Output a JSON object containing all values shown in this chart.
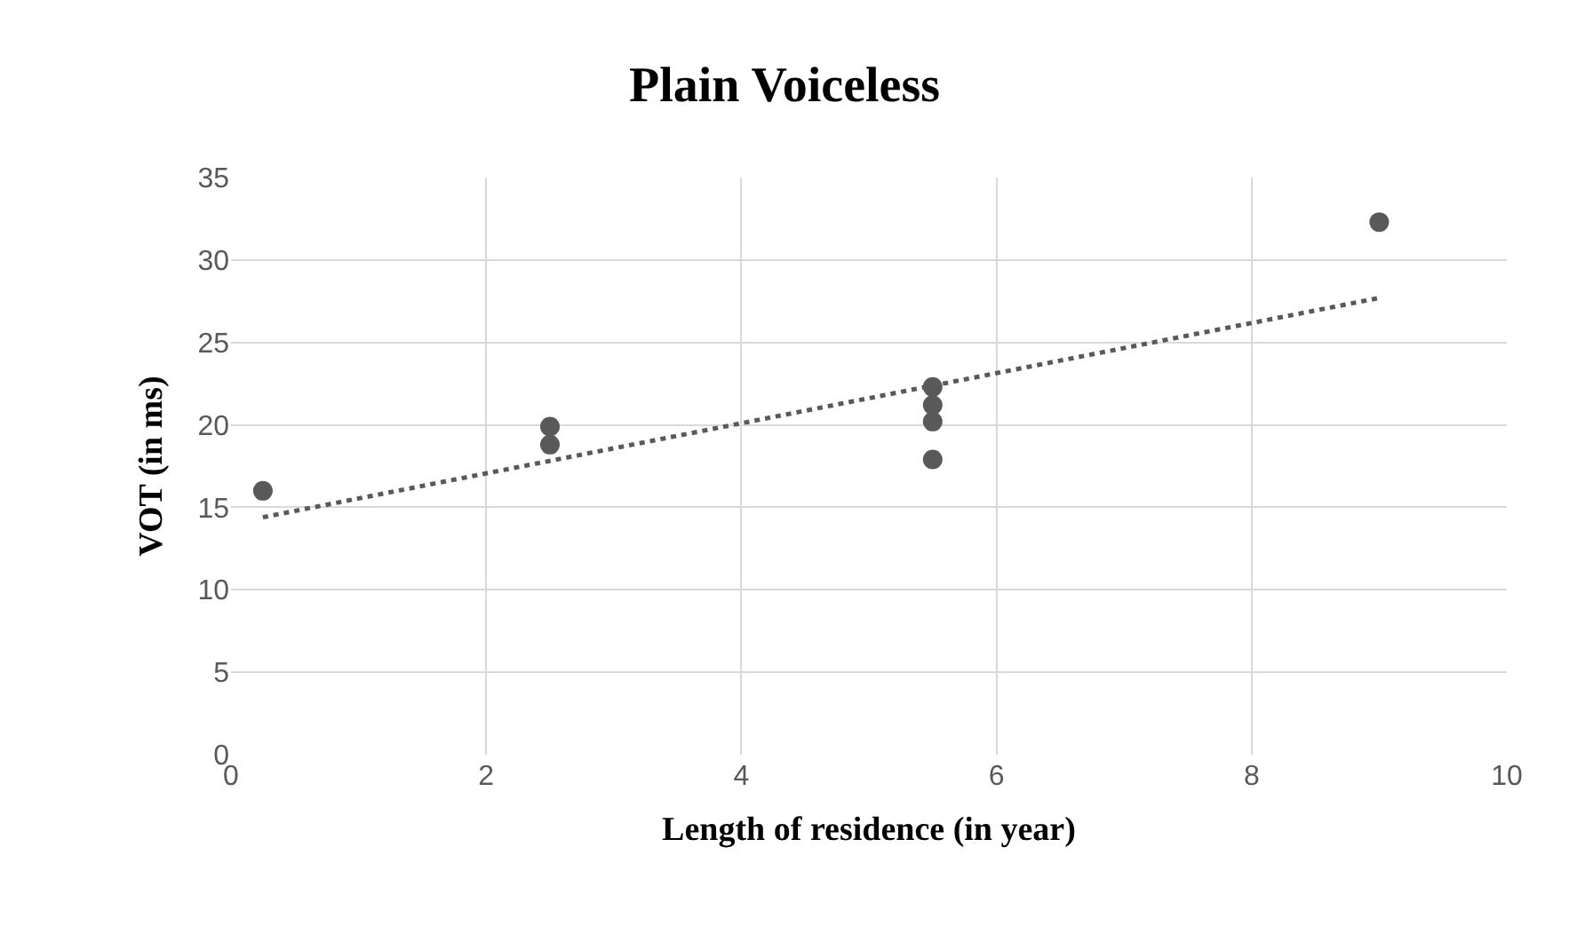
{
  "chart_data": {
    "type": "scatter",
    "title": "Plain Voiceless",
    "xlabel": "Length of residence (in year)",
    "ylabel": "VOT (in ms)",
    "xlim": [
      0,
      10
    ],
    "xticks": [
      0,
      2,
      4,
      6,
      8,
      10
    ],
    "ylim": [
      0,
      35
    ],
    "yticks": [
      0,
      5,
      10,
      15,
      20,
      25,
      30,
      35
    ],
    "grid": true,
    "series": [
      {
        "color": "#595959",
        "marker": "circle",
        "x": [
          0.25,
          2.5,
          2.5,
          5.5,
          5.5,
          5.5,
          5.5,
          9
        ],
        "values": [
          16,
          19.9,
          18.8,
          22.3,
          21.2,
          20.2,
          17.9,
          32.3
        ]
      },
      {
        "type": "line",
        "color": "#595959",
        "line_style": "dotted",
        "marker": "none",
        "x": [
          0.25,
          9
        ],
        "values": [
          14.4,
          27.7
        ]
      }
    ]
  }
}
